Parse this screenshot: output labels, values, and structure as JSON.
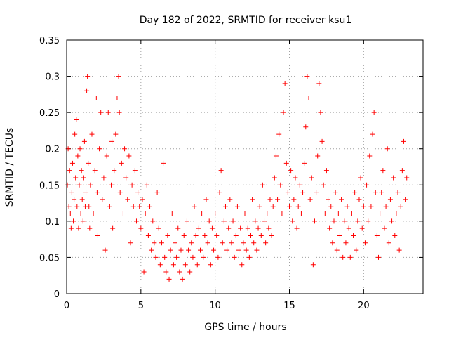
{
  "chart_data": {
    "type": "scatter",
    "title": "Day 182 of 2022, SRMTID for receiver ksu1",
    "xlabel": "GPS time / hours",
    "ylabel": "SRMTID / TECUs",
    "xlim": [
      0,
      24
    ],
    "ylim": [
      0,
      0.35
    ],
    "xticks": [
      0,
      5,
      10,
      15,
      20
    ],
    "yticks": [
      0,
      0.05,
      0.1,
      0.15,
      0.2,
      0.25,
      0.3,
      0.35
    ],
    "ytick_labels": [
      "0",
      "0.05",
      "0.1",
      "0.15",
      "0.2",
      "0.25",
      "0.3",
      "0.35"
    ],
    "grid": true,
    "marker": "+",
    "color": "#ff0000",
    "series": [
      {
        "name": "SRMTID",
        "points": [
          [
            0.05,
            0.15
          ],
          [
            0.1,
            0.2
          ],
          [
            0.15,
            0.12
          ],
          [
            0.2,
            0.17
          ],
          [
            0.25,
            0.11
          ],
          [
            0.3,
            0.09
          ],
          [
            0.35,
            0.14
          ],
          [
            0.4,
            0.18
          ],
          [
            0.45,
            0.1
          ],
          [
            0.5,
            0.13
          ],
          [
            0.55,
            0.22
          ],
          [
            0.6,
            0.16
          ],
          [
            0.65,
            0.24
          ],
          [
            0.7,
            0.12
          ],
          [
            0.75,
            0.19
          ],
          [
            0.8,
            0.09
          ],
          [
            0.85,
            0.15
          ],
          [
            0.9,
            0.2
          ],
          [
            0.95,
            0.11
          ],
          [
            1.0,
            0.17
          ],
          [
            1.05,
            0.13
          ],
          [
            1.1,
            0.1
          ],
          [
            1.15,
            0.16
          ],
          [
            1.2,
            0.21
          ],
          [
            1.25,
            0.12
          ],
          [
            1.3,
            0.14
          ],
          [
            1.35,
            0.28
          ],
          [
            1.4,
            0.3
          ],
          [
            1.45,
            0.18
          ],
          [
            1.5,
            0.12
          ],
          [
            1.55,
            0.09
          ],
          [
            1.6,
            0.15
          ],
          [
            1.7,
            0.22
          ],
          [
            1.8,
            0.11
          ],
          [
            1.9,
            0.17
          ],
          [
            2.0,
            0.27
          ],
          [
            2.05,
            0.14
          ],
          [
            2.1,
            0.08
          ],
          [
            2.2,
            0.2
          ],
          [
            2.3,
            0.25
          ],
          [
            2.4,
            0.13
          ],
          [
            2.5,
            0.16
          ],
          [
            2.6,
            0.06
          ],
          [
            2.7,
            0.19
          ],
          [
            2.8,
            0.25
          ],
          [
            2.9,
            0.12
          ],
          [
            3.0,
            0.15
          ],
          [
            3.05,
            0.21
          ],
          [
            3.1,
            0.09
          ],
          [
            3.2,
            0.17
          ],
          [
            3.3,
            0.22
          ],
          [
            3.4,
            0.27
          ],
          [
            3.5,
            0.3
          ],
          [
            3.55,
            0.25
          ],
          [
            3.6,
            0.14
          ],
          [
            3.7,
            0.18
          ],
          [
            3.8,
            0.11
          ],
          [
            3.9,
            0.2
          ],
          [
            4.0,
            0.16
          ],
          [
            4.1,
            0.13
          ],
          [
            4.2,
            0.19
          ],
          [
            4.3,
            0.07
          ],
          [
            4.4,
            0.15
          ],
          [
            4.5,
            0.12
          ],
          [
            4.6,
            0.17
          ],
          [
            4.7,
            0.1
          ],
          [
            4.8,
            0.14
          ],
          [
            4.9,
            0.12
          ],
          [
            5.0,
            0.09
          ],
          [
            5.1,
            0.13
          ],
          [
            5.2,
            0.03
          ],
          [
            5.3,
            0.11
          ],
          [
            5.4,
            0.15
          ],
          [
            5.5,
            0.08
          ],
          [
            5.6,
            0.12
          ],
          [
            5.7,
            0.06
          ],
          [
            5.8,
            0.1
          ],
          [
            5.9,
            0.07
          ],
          [
            6.0,
            0.05
          ],
          [
            6.1,
            0.14
          ],
          [
            6.2,
            0.09
          ],
          [
            6.3,
            0.04
          ],
          [
            6.4,
            0.07
          ],
          [
            6.5,
            0.18
          ],
          [
            6.6,
            0.05
          ],
          [
            6.7,
            0.03
          ],
          [
            6.8,
            0.08
          ],
          [
            6.9,
            0.02
          ],
          [
            7.0,
            0.06
          ],
          [
            7.1,
            0.11
          ],
          [
            7.2,
            0.04
          ],
          [
            7.3,
            0.07
          ],
          [
            7.4,
            0.05
          ],
          [
            7.5,
            0.09
          ],
          [
            7.6,
            0.03
          ],
          [
            7.7,
            0.06
          ],
          [
            7.8,
            0.02
          ],
          [
            7.9,
            0.08
          ],
          [
            8.0,
            0.04
          ],
          [
            8.1,
            0.1
          ],
          [
            8.2,
            0.06
          ],
          [
            8.3,
            0.03
          ],
          [
            8.4,
            0.07
          ],
          [
            8.5,
            0.05
          ],
          [
            8.6,
            0.12
          ],
          [
            8.7,
            0.08
          ],
          [
            8.8,
            0.04
          ],
          [
            8.9,
            0.09
          ],
          [
            9.0,
            0.06
          ],
          [
            9.1,
            0.11
          ],
          [
            9.2,
            0.05
          ],
          [
            9.3,
            0.08
          ],
          [
            9.4,
            0.13
          ],
          [
            9.5,
            0.07
          ],
          [
            9.6,
            0.1
          ],
          [
            9.7,
            0.04
          ],
          [
            9.8,
            0.09
          ],
          [
            9.9,
            0.06
          ],
          [
            10.0,
            0.11
          ],
          [
            10.1,
            0.08
          ],
          [
            10.2,
            0.05
          ],
          [
            10.3,
            0.14
          ],
          [
            10.4,
            0.17
          ],
          [
            10.5,
            0.07
          ],
          [
            10.6,
            0.1
          ],
          [
            10.7,
            0.12
          ],
          [
            10.8,
            0.06
          ],
          [
            10.9,
            0.09
          ],
          [
            11.0,
            0.13
          ],
          [
            11.1,
            0.07
          ],
          [
            11.2,
            0.1
          ],
          [
            11.3,
            0.05
          ],
          [
            11.4,
            0.08
          ],
          [
            11.5,
            0.12
          ],
          [
            11.6,
            0.06
          ],
          [
            11.7,
            0.09
          ],
          [
            11.8,
            0.04
          ],
          [
            11.9,
            0.07
          ],
          [
            12.0,
            0.11
          ],
          [
            12.1,
            0.06
          ],
          [
            12.2,
            0.09
          ],
          [
            12.3,
            0.05
          ],
          [
            12.4,
            0.08
          ],
          [
            12.5,
            0.13
          ],
          [
            12.6,
            0.07
          ],
          [
            12.7,
            0.1
          ],
          [
            12.8,
            0.06
          ],
          [
            12.9,
            0.09
          ],
          [
            13.0,
            0.12
          ],
          [
            13.1,
            0.08
          ],
          [
            13.2,
            0.15
          ],
          [
            13.3,
            0.1
          ],
          [
            13.4,
            0.07
          ],
          [
            13.5,
            0.11
          ],
          [
            13.6,
            0.09
          ],
          [
            13.7,
            0.13
          ],
          [
            13.8,
            0.08
          ],
          [
            13.9,
            0.12
          ],
          [
            14.0,
            0.16
          ],
          [
            14.1,
            0.19
          ],
          [
            14.2,
            0.13
          ],
          [
            14.3,
            0.22
          ],
          [
            14.4,
            0.15
          ],
          [
            14.5,
            0.11
          ],
          [
            14.6,
            0.25
          ],
          [
            14.7,
            0.29
          ],
          [
            14.8,
            0.18
          ],
          [
            14.9,
            0.14
          ],
          [
            15.0,
            0.12
          ],
          [
            15.1,
            0.17
          ],
          [
            15.2,
            0.1
          ],
          [
            15.3,
            0.13
          ],
          [
            15.4,
            0.16
          ],
          [
            15.5,
            0.09
          ],
          [
            15.6,
            0.12
          ],
          [
            15.7,
            0.15
          ],
          [
            15.8,
            0.11
          ],
          [
            15.9,
            0.14
          ],
          [
            16.0,
            0.18
          ],
          [
            16.1,
            0.23
          ],
          [
            16.2,
            0.3
          ],
          [
            16.3,
            0.27
          ],
          [
            16.4,
            0.13
          ],
          [
            16.5,
            0.16
          ],
          [
            16.6,
            0.04
          ],
          [
            16.7,
            0.1
          ],
          [
            16.8,
            0.14
          ],
          [
            16.9,
            0.19
          ],
          [
            17.0,
            0.29
          ],
          [
            17.1,
            0.25
          ],
          [
            17.2,
            0.21
          ],
          [
            17.3,
            0.15
          ],
          [
            17.4,
            0.11
          ],
          [
            17.5,
            0.17
          ],
          [
            17.6,
            0.13
          ],
          [
            17.7,
            0.09
          ],
          [
            17.8,
            0.12
          ],
          [
            17.9,
            0.07
          ],
          [
            18.0,
            0.1
          ],
          [
            18.1,
            0.14
          ],
          [
            18.2,
            0.06
          ],
          [
            18.3,
            0.11
          ],
          [
            18.4,
            0.08
          ],
          [
            18.5,
            0.13
          ],
          [
            18.6,
            0.05
          ],
          [
            18.7,
            0.1
          ],
          [
            18.8,
            0.07
          ],
          [
            18.9,
            0.12
          ],
          [
            19.0,
            0.09
          ],
          [
            19.1,
            0.05
          ],
          [
            19.2,
            0.11
          ],
          [
            19.3,
            0.08
          ],
          [
            19.4,
            0.14
          ],
          [
            19.5,
            0.06
          ],
          [
            19.6,
            0.1
          ],
          [
            19.7,
            0.13
          ],
          [
            19.8,
            0.16
          ],
          [
            19.9,
            0.09
          ],
          [
            20.0,
            0.12
          ],
          [
            20.1,
            0.07
          ],
          [
            20.2,
            0.15
          ],
          [
            20.3,
            0.1
          ],
          [
            20.4,
            0.19
          ],
          [
            20.5,
            0.12
          ],
          [
            20.6,
            0.22
          ],
          [
            20.7,
            0.25
          ],
          [
            20.8,
            0.14
          ],
          [
            20.9,
            0.08
          ],
          [
            21.0,
            0.05
          ],
          [
            21.1,
            0.11
          ],
          [
            21.2,
            0.14
          ],
          [
            21.3,
            0.17
          ],
          [
            21.4,
            0.09
          ],
          [
            21.5,
            0.12
          ],
          [
            21.6,
            0.2
          ],
          [
            21.7,
            0.07
          ],
          [
            21.8,
            0.13
          ],
          [
            21.9,
            0.1
          ],
          [
            22.0,
            0.16
          ],
          [
            22.1,
            0.08
          ],
          [
            22.2,
            0.11
          ],
          [
            22.3,
            0.14
          ],
          [
            22.4,
            0.06
          ],
          [
            22.5,
            0.12
          ],
          [
            22.6,
            0.17
          ],
          [
            22.7,
            0.21
          ],
          [
            22.8,
            0.13
          ],
          [
            22.9,
            0.16
          ]
        ]
      }
    ]
  }
}
